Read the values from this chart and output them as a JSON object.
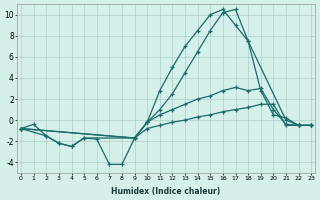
{
  "xlabel": "Humidex (Indice chaleur)",
  "bg_color": "#d5f0eb",
  "grid_color": "#aacfc8",
  "line_color": "#1a6b6b",
  "xlim": [
    -0.3,
    23.3
  ],
  "ylim": [
    -5.0,
    11.0
  ],
  "yticks": [
    -4,
    -2,
    0,
    2,
    4,
    6,
    8,
    10
  ],
  "xticks": [
    0,
    1,
    2,
    3,
    4,
    5,
    6,
    7,
    8,
    9,
    10,
    11,
    12,
    13,
    14,
    15,
    16,
    17,
    18,
    19,
    20,
    21,
    22,
    23
  ],
  "line1_x": [
    0,
    1,
    2,
    3,
    4,
    5,
    6,
    7,
    8,
    9,
    10,
    11,
    12,
    13,
    14,
    15,
    16,
    17,
    18,
    19,
    20,
    21,
    22,
    23
  ],
  "line1_y": [
    -0.8,
    -0.4,
    -1.5,
    -2.2,
    -2.5,
    -1.7,
    -1.8,
    -4.2,
    -4.2,
    -1.7,
    -0.2,
    2.8,
    5.0,
    7.0,
    8.5,
    10.0,
    10.5,
    9.0,
    7.5,
    2.8,
    0.5,
    0.2,
    -0.5,
    -0.5
  ],
  "line2_x": [
    0,
    2,
    3,
    4,
    5,
    9,
    10,
    11,
    12,
    13,
    14,
    15,
    16,
    17,
    18,
    21,
    22,
    23
  ],
  "line2_y": [
    -0.8,
    -1.5,
    -2.2,
    -2.5,
    -1.7,
    -1.7,
    -0.2,
    1.0,
    2.5,
    4.5,
    6.5,
    8.5,
    10.2,
    10.5,
    7.5,
    0.0,
    -0.5,
    -0.5
  ],
  "line3_x": [
    0,
    9,
    10,
    11,
    12,
    13,
    14,
    15,
    16,
    17,
    18,
    19,
    20,
    21,
    22,
    23
  ],
  "line3_y": [
    -0.8,
    -1.7,
    -0.2,
    0.5,
    1.0,
    1.5,
    2.0,
    2.3,
    2.8,
    3.1,
    2.8,
    3.0,
    1.0,
    -0.4,
    -0.5,
    -0.5
  ],
  "line4_x": [
    0,
    9,
    10,
    11,
    12,
    13,
    14,
    15,
    16,
    17,
    18,
    19,
    20,
    21,
    22,
    23
  ],
  "line4_y": [
    -0.8,
    -1.7,
    -0.8,
    -0.5,
    -0.2,
    0.0,
    0.3,
    0.5,
    0.8,
    1.0,
    1.2,
    1.5,
    1.5,
    -0.5,
    -0.5,
    -0.5
  ]
}
